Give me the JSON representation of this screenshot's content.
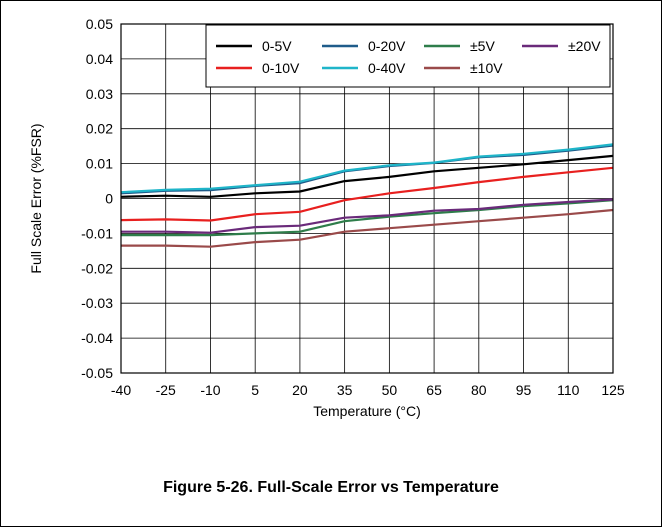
{
  "caption": "Figure 5-26. Full-Scale Error vs Temperature",
  "chart_data": {
    "type": "line",
    "title": "",
    "xlabel": "Temperature (°C)",
    "ylabel": "Full Scale Error (%FSR)",
    "x": [
      -40,
      -25,
      -10,
      5,
      20,
      35,
      50,
      65,
      80,
      95,
      110,
      125
    ],
    "xticks": [
      "-40",
      "-25",
      "-10",
      "5",
      "20",
      "35",
      "50",
      "65",
      "80",
      "95",
      "110",
      "125"
    ],
    "ylim": [
      -0.05,
      0.05
    ],
    "yticks": [
      "0.05",
      "0.04",
      "0.03",
      "0.02",
      "0.01",
      "0",
      "-0.01",
      "-0.02",
      "-0.03",
      "-0.04",
      "-0.05"
    ],
    "grid": true,
    "legend_position": "top-right",
    "series": [
      {
        "name": "0-5V",
        "color": "#000000",
        "values": [
          0.0005,
          0.0008,
          0.0005,
          0.0015,
          0.002,
          0.005,
          0.0062,
          0.0078,
          0.0088,
          0.0098,
          0.011,
          0.0122
        ]
      },
      {
        "name": "0-20V",
        "color": "#1f5c8a",
        "values": [
          0.0015,
          0.0022,
          0.0024,
          0.0036,
          0.0044,
          0.0078,
          0.0093,
          0.0102,
          0.0118,
          0.0125,
          0.0137,
          0.0152
        ]
      },
      {
        "name": "±5V",
        "color": "#2e7d4a",
        "values": [
          -0.0105,
          -0.0105,
          -0.0105,
          -0.01,
          -0.0095,
          -0.0065,
          -0.0052,
          -0.0042,
          -0.0033,
          -0.0022,
          -0.0014,
          -0.0005
        ]
      },
      {
        "name": "±20V",
        "color": "#6a2a7a",
        "values": [
          -0.0095,
          -0.0095,
          -0.0098,
          -0.0082,
          -0.0078,
          -0.0055,
          -0.0048,
          -0.0035,
          -0.003,
          -0.0018,
          -0.001,
          -0.0003
        ]
      },
      {
        "name": "0-10V",
        "color": "#e8201f",
        "values": [
          -0.0062,
          -0.006,
          -0.0063,
          -0.0045,
          -0.0038,
          -0.0005,
          0.0015,
          0.003,
          0.0047,
          0.0062,
          0.0075,
          0.0088
        ]
      },
      {
        "name": "0-40V",
        "color": "#1fb5c9",
        "values": [
          0.0018,
          0.0025,
          0.0028,
          0.0038,
          0.0048,
          0.008,
          0.0095,
          0.0103,
          0.012,
          0.0128,
          0.014,
          0.0155
        ]
      },
      {
        "name": "±10V",
        "color": "#9a4a4a",
        "values": [
          -0.0135,
          -0.0135,
          -0.0138,
          -0.0125,
          -0.0118,
          -0.0095,
          -0.0085,
          -0.0075,
          -0.0065,
          -0.0055,
          -0.0045,
          -0.0033
        ]
      }
    ]
  }
}
